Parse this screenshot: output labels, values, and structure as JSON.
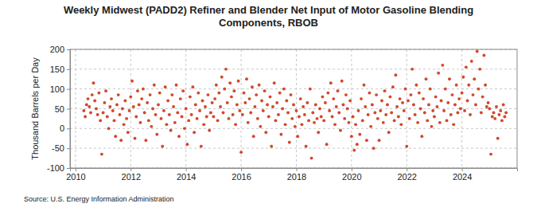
{
  "chart_data": {
    "type": "scatter",
    "title": "Weekly Midwest (PADD2) Refiner and Blender Net Input of Motor Gasoline Blending Components, RBOB",
    "y_label": "Thousand Barrels per Day",
    "source": "Source: U.S. Energy Information Administration",
    "color": "#d2492a",
    "marker": "circle",
    "grid": true,
    "xlim": [
      2009.8,
      2026
    ],
    "xticks": [
      2010,
      2012,
      2014,
      2016,
      2018,
      2020,
      2022,
      2024
    ],
    "ylim": [
      -100,
      200
    ],
    "yticks": [
      -100,
      -50,
      0,
      50,
      100,
      150,
      200
    ],
    "x": [
      2010.3,
      2010.35,
      2010.4,
      2010.45,
      2010.5,
      2010.55,
      2010.6,
      2010.65,
      2010.7,
      2010.75,
      2010.8,
      2010.85,
      2010.9,
      2010.95,
      2011.0,
      2011.05,
      2011.1,
      2011.15,
      2011.2,
      2011.25,
      2011.3,
      2011.35,
      2011.4,
      2011.45,
      2011.5,
      2011.55,
      2011.6,
      2011.65,
      2011.7,
      2011.75,
      2011.8,
      2011.85,
      2011.9,
      2011.95,
      2012.0,
      2012.05,
      2012.1,
      2012.15,
      2012.2,
      2012.25,
      2012.3,
      2012.35,
      2012.4,
      2012.45,
      2012.5,
      2012.55,
      2012.6,
      2012.65,
      2012.7,
      2012.75,
      2012.8,
      2012.85,
      2012.9,
      2012.95,
      2013.0,
      2013.05,
      2013.1,
      2013.15,
      2013.2,
      2013.25,
      2013.3,
      2013.35,
      2013.4,
      2013.45,
      2013.5,
      2013.55,
      2013.6,
      2013.65,
      2013.7,
      2013.75,
      2013.8,
      2013.85,
      2013.9,
      2013.95,
      2014.0,
      2014.05,
      2014.1,
      2014.15,
      2014.2,
      2014.25,
      2014.3,
      2014.35,
      2014.4,
      2014.45,
      2014.5,
      2014.55,
      2014.6,
      2014.65,
      2014.7,
      2014.75,
      2014.8,
      2014.85,
      2014.9,
      2014.95,
      2015.0,
      2015.05,
      2015.1,
      2015.15,
      2015.2,
      2015.25,
      2015.3,
      2015.35,
      2015.4,
      2015.45,
      2015.5,
      2015.55,
      2015.6,
      2015.65,
      2015.7,
      2015.75,
      2015.8,
      2015.85,
      2015.9,
      2015.95,
      2016.0,
      2016.05,
      2016.1,
      2016.15,
      2016.2,
      2016.25,
      2016.3,
      2016.35,
      2016.4,
      2016.45,
      2016.5,
      2016.55,
      2016.6,
      2016.65,
      2016.7,
      2016.75,
      2016.8,
      2016.85,
      2016.9,
      2016.95,
      2017.0,
      2017.05,
      2017.1,
      2017.15,
      2017.2,
      2017.25,
      2017.3,
      2017.35,
      2017.4,
      2017.45,
      2017.5,
      2017.55,
      2017.6,
      2017.65,
      2017.7,
      2017.75,
      2017.8,
      2017.85,
      2017.9,
      2017.95,
      2018.0,
      2018.05,
      2018.1,
      2018.15,
      2018.2,
      2018.25,
      2018.3,
      2018.35,
      2018.4,
      2018.45,
      2018.5,
      2018.55,
      2018.6,
      2018.65,
      2018.7,
      2018.75,
      2018.8,
      2018.85,
      2018.9,
      2018.95,
      2019.0,
      2019.05,
      2019.1,
      2019.15,
      2019.2,
      2019.25,
      2019.3,
      2019.35,
      2019.4,
      2019.45,
      2019.5,
      2019.55,
      2019.6,
      2019.65,
      2019.7,
      2019.75,
      2019.8,
      2019.85,
      2019.9,
      2019.95,
      2020.0,
      2020.05,
      2020.1,
      2020.15,
      2020.2,
      2020.25,
      2020.3,
      2020.35,
      2020.4,
      2020.45,
      2020.5,
      2020.55,
      2020.6,
      2020.65,
      2020.7,
      2020.75,
      2020.8,
      2020.85,
      2020.9,
      2020.95,
      2021.0,
      2021.05,
      2021.1,
      2021.15,
      2021.2,
      2021.25,
      2021.3,
      2021.35,
      2021.4,
      2021.45,
      2021.5,
      2021.55,
      2021.6,
      2021.65,
      2021.7,
      2021.75,
      2021.8,
      2021.85,
      2021.9,
      2021.95,
      2022.0,
      2022.05,
      2022.1,
      2022.15,
      2022.2,
      2022.25,
      2022.3,
      2022.35,
      2022.4,
      2022.45,
      2022.5,
      2022.55,
      2022.6,
      2022.65,
      2022.7,
      2022.75,
      2022.8,
      2022.85,
      2022.9,
      2022.95,
      2023.0,
      2023.05,
      2023.1,
      2023.15,
      2023.2,
      2023.25,
      2023.3,
      2023.35,
      2023.4,
      2023.45,
      2023.5,
      2023.55,
      2023.6,
      2023.65,
      2023.7,
      2023.75,
      2023.8,
      2023.85,
      2023.9,
      2023.95,
      2024.0,
      2024.05,
      2024.1,
      2024.15,
      2024.2,
      2024.25,
      2024.3,
      2024.35,
      2024.4,
      2024.45,
      2024.5,
      2024.55,
      2024.6,
      2024.65,
      2024.7,
      2024.75,
      2024.8,
      2024.85,
      2024.9,
      2024.95,
      2025.0,
      2025.05,
      2025.1,
      2025.15,
      2025.2,
      2025.25,
      2025.3,
      2025.35,
      2025.4,
      2025.45,
      2025.5,
      2025.55,
      2025.6
    ],
    "values": [
      45,
      30,
      60,
      75,
      55,
      40,
      85,
      115,
      70,
      50,
      35,
      90,
      20,
      -65,
      40,
      65,
      95,
      30,
      0,
      55,
      75,
      45,
      20,
      -20,
      60,
      85,
      35,
      -30,
      50,
      10,
      70,
      25,
      -10,
      45,
      80,
      120,
      55,
      -25,
      30,
      95,
      60,
      15,
      75,
      100,
      40,
      -30,
      65,
      20,
      85,
      5,
      50,
      110,
      35,
      -15,
      60,
      90,
      25,
      -45,
      45,
      105,
      10,
      70,
      35,
      -5,
      85,
      55,
      15,
      110,
      40,
      -20,
      75,
      30,
      95,
      0,
      50,
      -40,
      20,
      80,
      35,
      105,
      -10,
      60,
      25,
      90,
      45,
      -45,
      70,
      10,
      55,
      30,
      85,
      -5,
      40,
      65,
      30,
      75,
      110,
      20,
      90,
      55,
      130,
      40,
      100,
      150,
      65,
      25,
      115,
      80,
      35,
      95,
      10,
      60,
      120,
      45,
      -60,
      35,
      90,
      65,
      125,
      15,
      75,
      40,
      105,
      -20,
      55,
      85,
      25,
      110,
      5,
      70,
      45,
      95,
      -10,
      60,
      30,
      80,
      -45,
      55,
      115,
      20,
      65,
      35,
      90,
      -15,
      50,
      100,
      10,
      70,
      40,
      -35,
      85,
      25,
      60,
      5,
      45,
      -20,
      30,
      75,
      10,
      55,
      35,
      -45,
      65,
      20,
      100,
      -75,
      40,
      15,
      60,
      25,
      -10,
      50,
      30,
      80,
      20,
      65,
      -40,
      90,
      45,
      115,
      30,
      75,
      10,
      55,
      95,
      40,
      -5,
      120,
      60,
      25,
      85,
      50,
      15,
      70,
      -20,
      30,
      -55,
      10,
      -40,
      45,
      -15,
      75,
      20,
      110,
      55,
      -30,
      35,
      90,
      5,
      60,
      -50,
      40,
      85,
      25,
      -30,
      45,
      70,
      15,
      95,
      35,
      60,
      -10,
      80,
      40,
      105,
      20,
      135,
      55,
      30,
      75,
      10,
      65,
      45,
      100,
      -45,
      70,
      25,
      85,
      150,
      60,
      35,
      110,
      15,
      90,
      50,
      -20,
      75,
      40,
      125,
      20,
      60,
      100,
      5,
      45,
      30,
      80,
      55,
      140,
      15,
      70,
      160,
      45,
      100,
      20,
      65,
      125,
      35,
      85,
      10,
      60,
      110,
      40,
      75,
      50,
      90,
      130,
      45,
      155,
      70,
      110,
      35,
      170,
      85,
      125,
      60,
      195,
      100,
      150,
      40,
      80,
      185,
      110,
      55,
      65,
      50,
      -65,
      30,
      40,
      25,
      55,
      -25,
      35,
      45,
      20,
      60,
      30,
      40
    ]
  }
}
